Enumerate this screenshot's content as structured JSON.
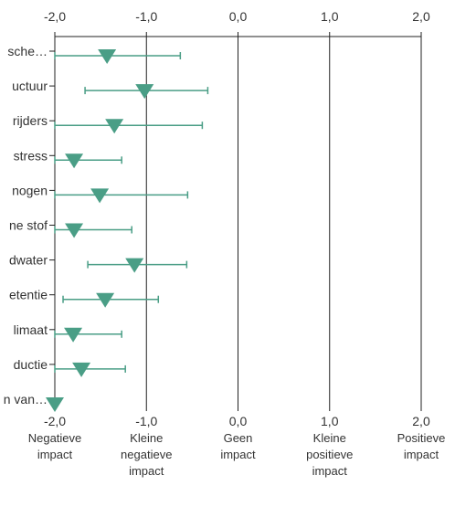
{
  "chart_data": {
    "type": "scatter",
    "subtype": "forest-plot",
    "orientation": "horizontal",
    "title": "",
    "xlabel": "",
    "ylabel": "",
    "xlim": [
      -2.0,
      2.0
    ],
    "x_ticks": [
      "-2,0",
      "-1,0",
      "0,0",
      "1,0",
      "2,0"
    ],
    "x_tick_values": [
      -2,
      -1,
      0,
      1,
      2
    ],
    "bottom_axis_labels": [
      {
        "value": -2,
        "lines": [
          "-2,0",
          "Negatieve",
          "impact"
        ]
      },
      {
        "value": -1,
        "lines": [
          "-1,0",
          "Kleine",
          "negatieve",
          "impact"
        ]
      },
      {
        "value": 0,
        "lines": [
          "0,0",
          "Geen",
          "impact"
        ]
      },
      {
        "value": 1,
        "lines": [
          "1,0",
          "Kleine",
          "positieve",
          "impact"
        ]
      },
      {
        "value": 2,
        "lines": [
          "2,0",
          "Positieve",
          "impact"
        ]
      }
    ],
    "grid": "vertical",
    "marker_color": "#4a9e86",
    "marker": "triangle-down",
    "series": [
      {
        "points": [
          {
            "label": "sche…",
            "value": -1.43,
            "low": -2.0,
            "high": -0.63
          },
          {
            "label": "uctuur",
            "value": -1.02,
            "low": -1.67,
            "high": -0.33
          },
          {
            "label": "rijders",
            "value": -1.35,
            "low": -2.0,
            "high": -0.39
          },
          {
            "label": "stress",
            "value": -1.79,
            "low": -2.0,
            "high": -1.27
          },
          {
            "label": "nogen",
            "value": -1.51,
            "low": -2.0,
            "high": -0.55
          },
          {
            "label": "ne stof",
            "value": -1.79,
            "low": -2.0,
            "high": -1.16
          },
          {
            "label": "dwater",
            "value": -1.13,
            "low": -1.64,
            "high": -0.56
          },
          {
            "label": "etentie",
            "value": -1.45,
            "low": -1.91,
            "high": -0.87
          },
          {
            "label": "limaat",
            "value": -1.8,
            "low": -2.0,
            "high": -1.27
          },
          {
            "label": "ductie",
            "value": -1.71,
            "low": -2.0,
            "high": -1.23
          },
          {
            "label": "n van…",
            "value": -2.0,
            "low": -2.0,
            "high": -2.0
          }
        ]
      }
    ]
  }
}
